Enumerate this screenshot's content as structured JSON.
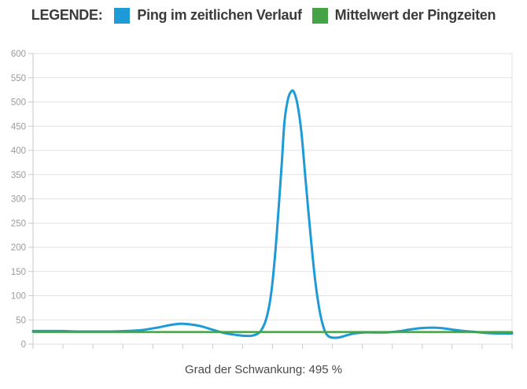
{
  "legend": {
    "title": "LEGENDE:",
    "items": [
      {
        "label": "Ping im zeitlichen Verlauf",
        "color": "#1e9ad6"
      },
      {
        "label": "Mittelwert der Pingzeiten",
        "color": "#44a344"
      }
    ]
  },
  "footer": {
    "text": "Grad der Schwankung: 495 %"
  },
  "colors": {
    "ping_line": "#1e9ad6",
    "mean_line": "#44a344",
    "grid": "#e2e2e2",
    "axis": "#c9c9c9",
    "tick_label": "#9b9b9b"
  },
  "chart_data": {
    "type": "line",
    "title": "",
    "xlabel": "",
    "ylabel": "",
    "ylim": [
      0,
      600
    ],
    "y_ticks": [
      0,
      50,
      100,
      150,
      200,
      250,
      300,
      350,
      400,
      450,
      500,
      550,
      600
    ],
    "x_tick_count": 17,
    "x_tick_labels": [],
    "grid": "horizontal",
    "legend_position": "top",
    "series": [
      {
        "name": "Ping im zeitlichen Verlauf",
        "color": "#1e9ad6",
        "width": 3,
        "points": [
          [
            0,
            27
          ],
          [
            3.0,
            27
          ],
          [
            6.2,
            27
          ],
          [
            9.5,
            26
          ],
          [
            12.8,
            26
          ],
          [
            16.1,
            26
          ],
          [
            19.4,
            27
          ],
          [
            22.7,
            29
          ],
          [
            25.9,
            34
          ],
          [
            28.4,
            39
          ],
          [
            30.5,
            42
          ],
          [
            32.5,
            41
          ],
          [
            35.0,
            37
          ],
          [
            37.4,
            30
          ],
          [
            39.9,
            23
          ],
          [
            42.4,
            19
          ],
          [
            44.3,
            17
          ],
          [
            46.0,
            18
          ],
          [
            47.6,
            28
          ],
          [
            48.9,
            60
          ],
          [
            49.9,
            120
          ],
          [
            50.9,
            230
          ],
          [
            51.9,
            370
          ],
          [
            52.5,
            460
          ],
          [
            53.2,
            505
          ],
          [
            53.9,
            522
          ],
          [
            54.5,
            520
          ],
          [
            55.2,
            495
          ],
          [
            56.0,
            440
          ],
          [
            56.8,
            350
          ],
          [
            57.8,
            240
          ],
          [
            58.8,
            140
          ],
          [
            59.8,
            70
          ],
          [
            60.8,
            30
          ],
          [
            61.7,
            16
          ],
          [
            62.9,
            13
          ],
          [
            64.0,
            14
          ],
          [
            65.4,
            18
          ],
          [
            67.0,
            22
          ],
          [
            69.0,
            24
          ],
          [
            71.1,
            24
          ],
          [
            73.6,
            24
          ],
          [
            76.0,
            26
          ],
          [
            78.5,
            30
          ],
          [
            80.9,
            33
          ],
          [
            83.4,
            34
          ],
          [
            85.4,
            33
          ],
          [
            87.5,
            30
          ],
          [
            90.0,
            27
          ],
          [
            92.4,
            25
          ],
          [
            94.6,
            23
          ],
          [
            96.9,
            22
          ],
          [
            99.0,
            22
          ],
          [
            100,
            22
          ]
        ]
      },
      {
        "name": "Mittelwert der Pingzeiten",
        "color": "#44a344",
        "width": 2.5,
        "points": [
          [
            0,
            25
          ],
          [
            100,
            25
          ]
        ]
      }
    ]
  }
}
